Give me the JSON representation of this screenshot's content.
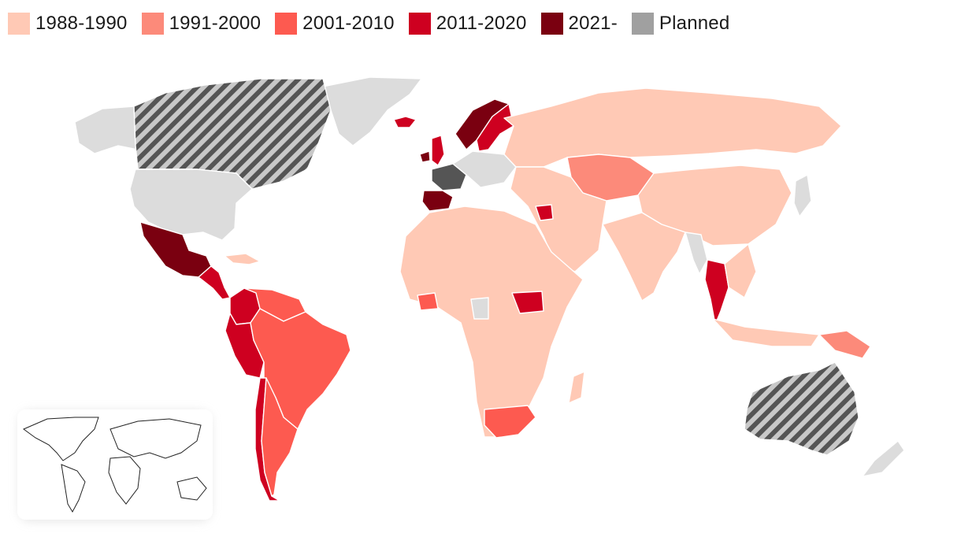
{
  "legend": [
    {
      "label": "1988-1990",
      "color": "#ffc9b5"
    },
    {
      "label": "1991-2000",
      "color": "#fc8a7a"
    },
    {
      "label": "2001-2010",
      "color": "#fd5a50"
    },
    {
      "label": "2011-2020",
      "color": "#ce0020"
    },
    {
      "label": "2021-",
      "color": "#7a0010"
    },
    {
      "label": "Planned",
      "color": "#a0a0a0"
    }
  ],
  "colors": {
    "no_data": "#dcdcdc",
    "planned_stripe_dark": "#555555",
    "planned_stripe_light": "#c8c8c8",
    "background": "#ffffff"
  },
  "map": {
    "type": "choropleth world map",
    "inset": "world outline locator map",
    "regions": [
      {
        "name": "Canada",
        "category": "Planned"
      },
      {
        "name": "Australia",
        "category": "Planned"
      },
      {
        "name": "Mexico",
        "category": "2021-"
      },
      {
        "name": "Spain",
        "category": "2021-"
      },
      {
        "name": "Ireland",
        "category": "2021-"
      },
      {
        "name": "Norway",
        "category": "2021-"
      },
      {
        "name": "Brazil",
        "category": "2001-2010"
      },
      {
        "name": "Argentina",
        "category": "2001-2010"
      },
      {
        "name": "South Africa",
        "category": "2001-2010"
      },
      {
        "name": "Kazakhstan",
        "category": "1991-2000"
      },
      {
        "name": "Russia",
        "category": "1988-1990"
      },
      {
        "name": "China",
        "category": "1988-1990"
      },
      {
        "name": "India",
        "category": "1988-1990"
      },
      {
        "name": "Thailand",
        "category": "2011-2020"
      },
      {
        "name": "Peru",
        "category": "2011-2020"
      },
      {
        "name": "Colombia",
        "category": "2011-2020"
      },
      {
        "name": "United States",
        "category": "none"
      },
      {
        "name": "Greenland",
        "category": "none"
      }
    ]
  }
}
